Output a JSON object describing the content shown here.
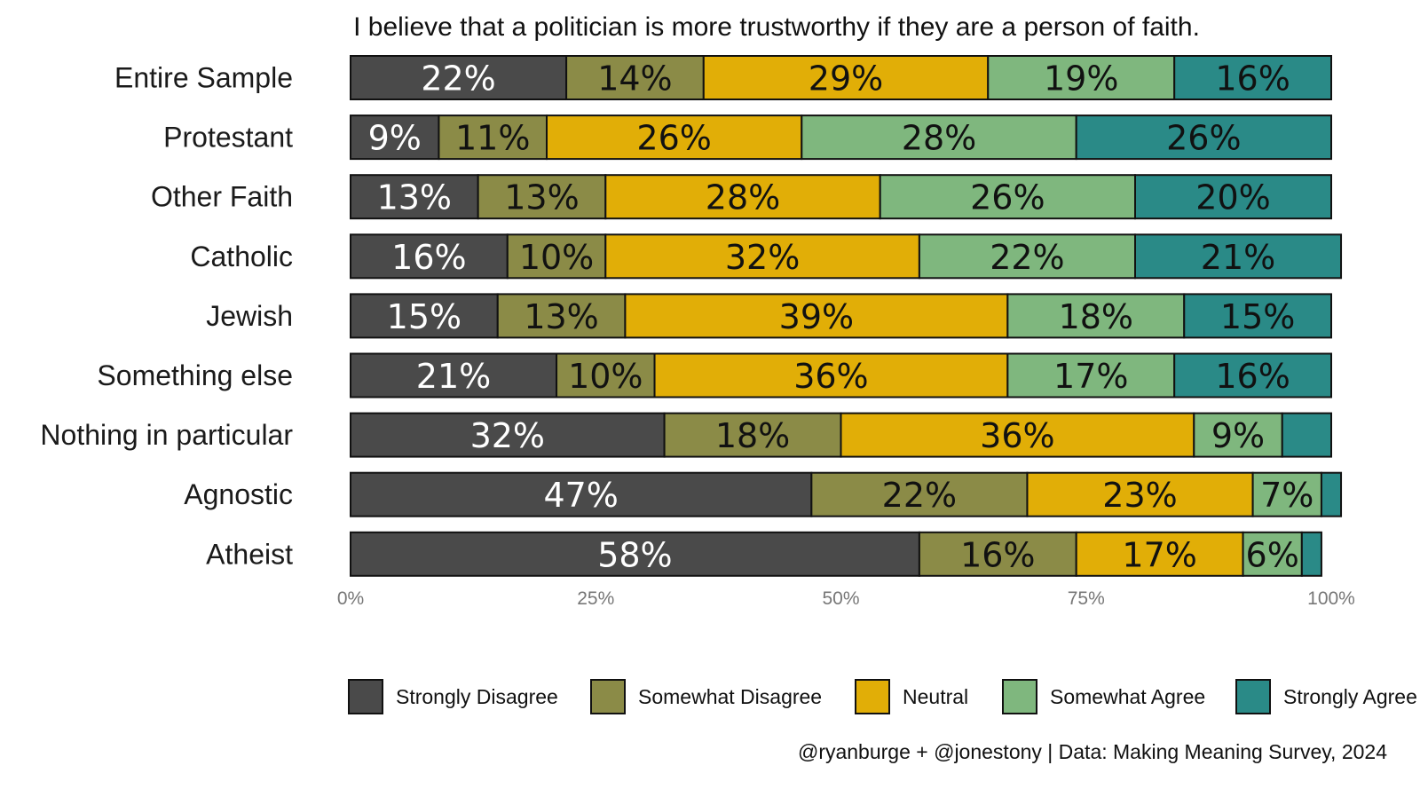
{
  "chart_data": {
    "type": "bar",
    "orientation": "horizontal",
    "stacked": true,
    "title": "I believe that a politician is more trustworthy if they are a person of faith.",
    "categories": [
      "Entire Sample",
      "Protestant",
      "Other Faith",
      "Catholic",
      "Jewish",
      "Something else",
      "Nothing in particular",
      "Agnostic",
      "Atheist"
    ],
    "series": [
      {
        "name": "Strongly Disagree",
        "color": "#4a4a4a",
        "label_color": "#ffffff",
        "values": [
          22,
          9,
          13,
          16,
          15,
          21,
          32,
          47,
          58
        ],
        "labels": [
          "22%",
          "9%",
          "13%",
          "16%",
          "15%",
          "21%",
          "32%",
          "47%",
          "58%"
        ]
      },
      {
        "name": "Somewhat Disagree",
        "color": "#8b8b47",
        "label_color": "#111111",
        "values": [
          14,
          11,
          13,
          10,
          13,
          10,
          18,
          22,
          16
        ],
        "labels": [
          "14%",
          "11%",
          "13%",
          "10%",
          "13%",
          "10%",
          "18%",
          "22%",
          "16%"
        ]
      },
      {
        "name": "Neutral",
        "color": "#e1ae07",
        "label_color": "#111111",
        "values": [
          29,
          26,
          28,
          32,
          39,
          36,
          36,
          23,
          17
        ],
        "labels": [
          "29%",
          "26%",
          "28%",
          "32%",
          "39%",
          "36%",
          "36%",
          "23%",
          "17%"
        ]
      },
      {
        "name": "Somewhat Agree",
        "color": "#7fb77e",
        "label_color": "#111111",
        "values": [
          19,
          28,
          26,
          22,
          18,
          17,
          9,
          7,
          6
        ],
        "labels": [
          "19%",
          "28%",
          "26%",
          "22%",
          "18%",
          "17%",
          "9%",
          "7%",
          "6%"
        ]
      },
      {
        "name": "Strongly Agree",
        "color": "#2a8a87",
        "label_color": "#111111",
        "values": [
          16,
          26,
          20,
          21,
          15,
          16,
          5,
          2,
          2
        ],
        "labels": [
          "16%",
          "26%",
          "20%",
          "21%",
          "15%",
          "16%",
          "",
          "",
          ""
        ]
      }
    ],
    "x_ticks": [
      "0%",
      "25%",
      "50%",
      "75%",
      "100%"
    ],
    "xlim": [
      0,
      100
    ],
    "xlabel": "",
    "ylabel": "",
    "grid": false,
    "legend_position": "bottom",
    "caption": "@ryanburge + @jonestony | Data: Making Meaning Survey, 2024"
  }
}
